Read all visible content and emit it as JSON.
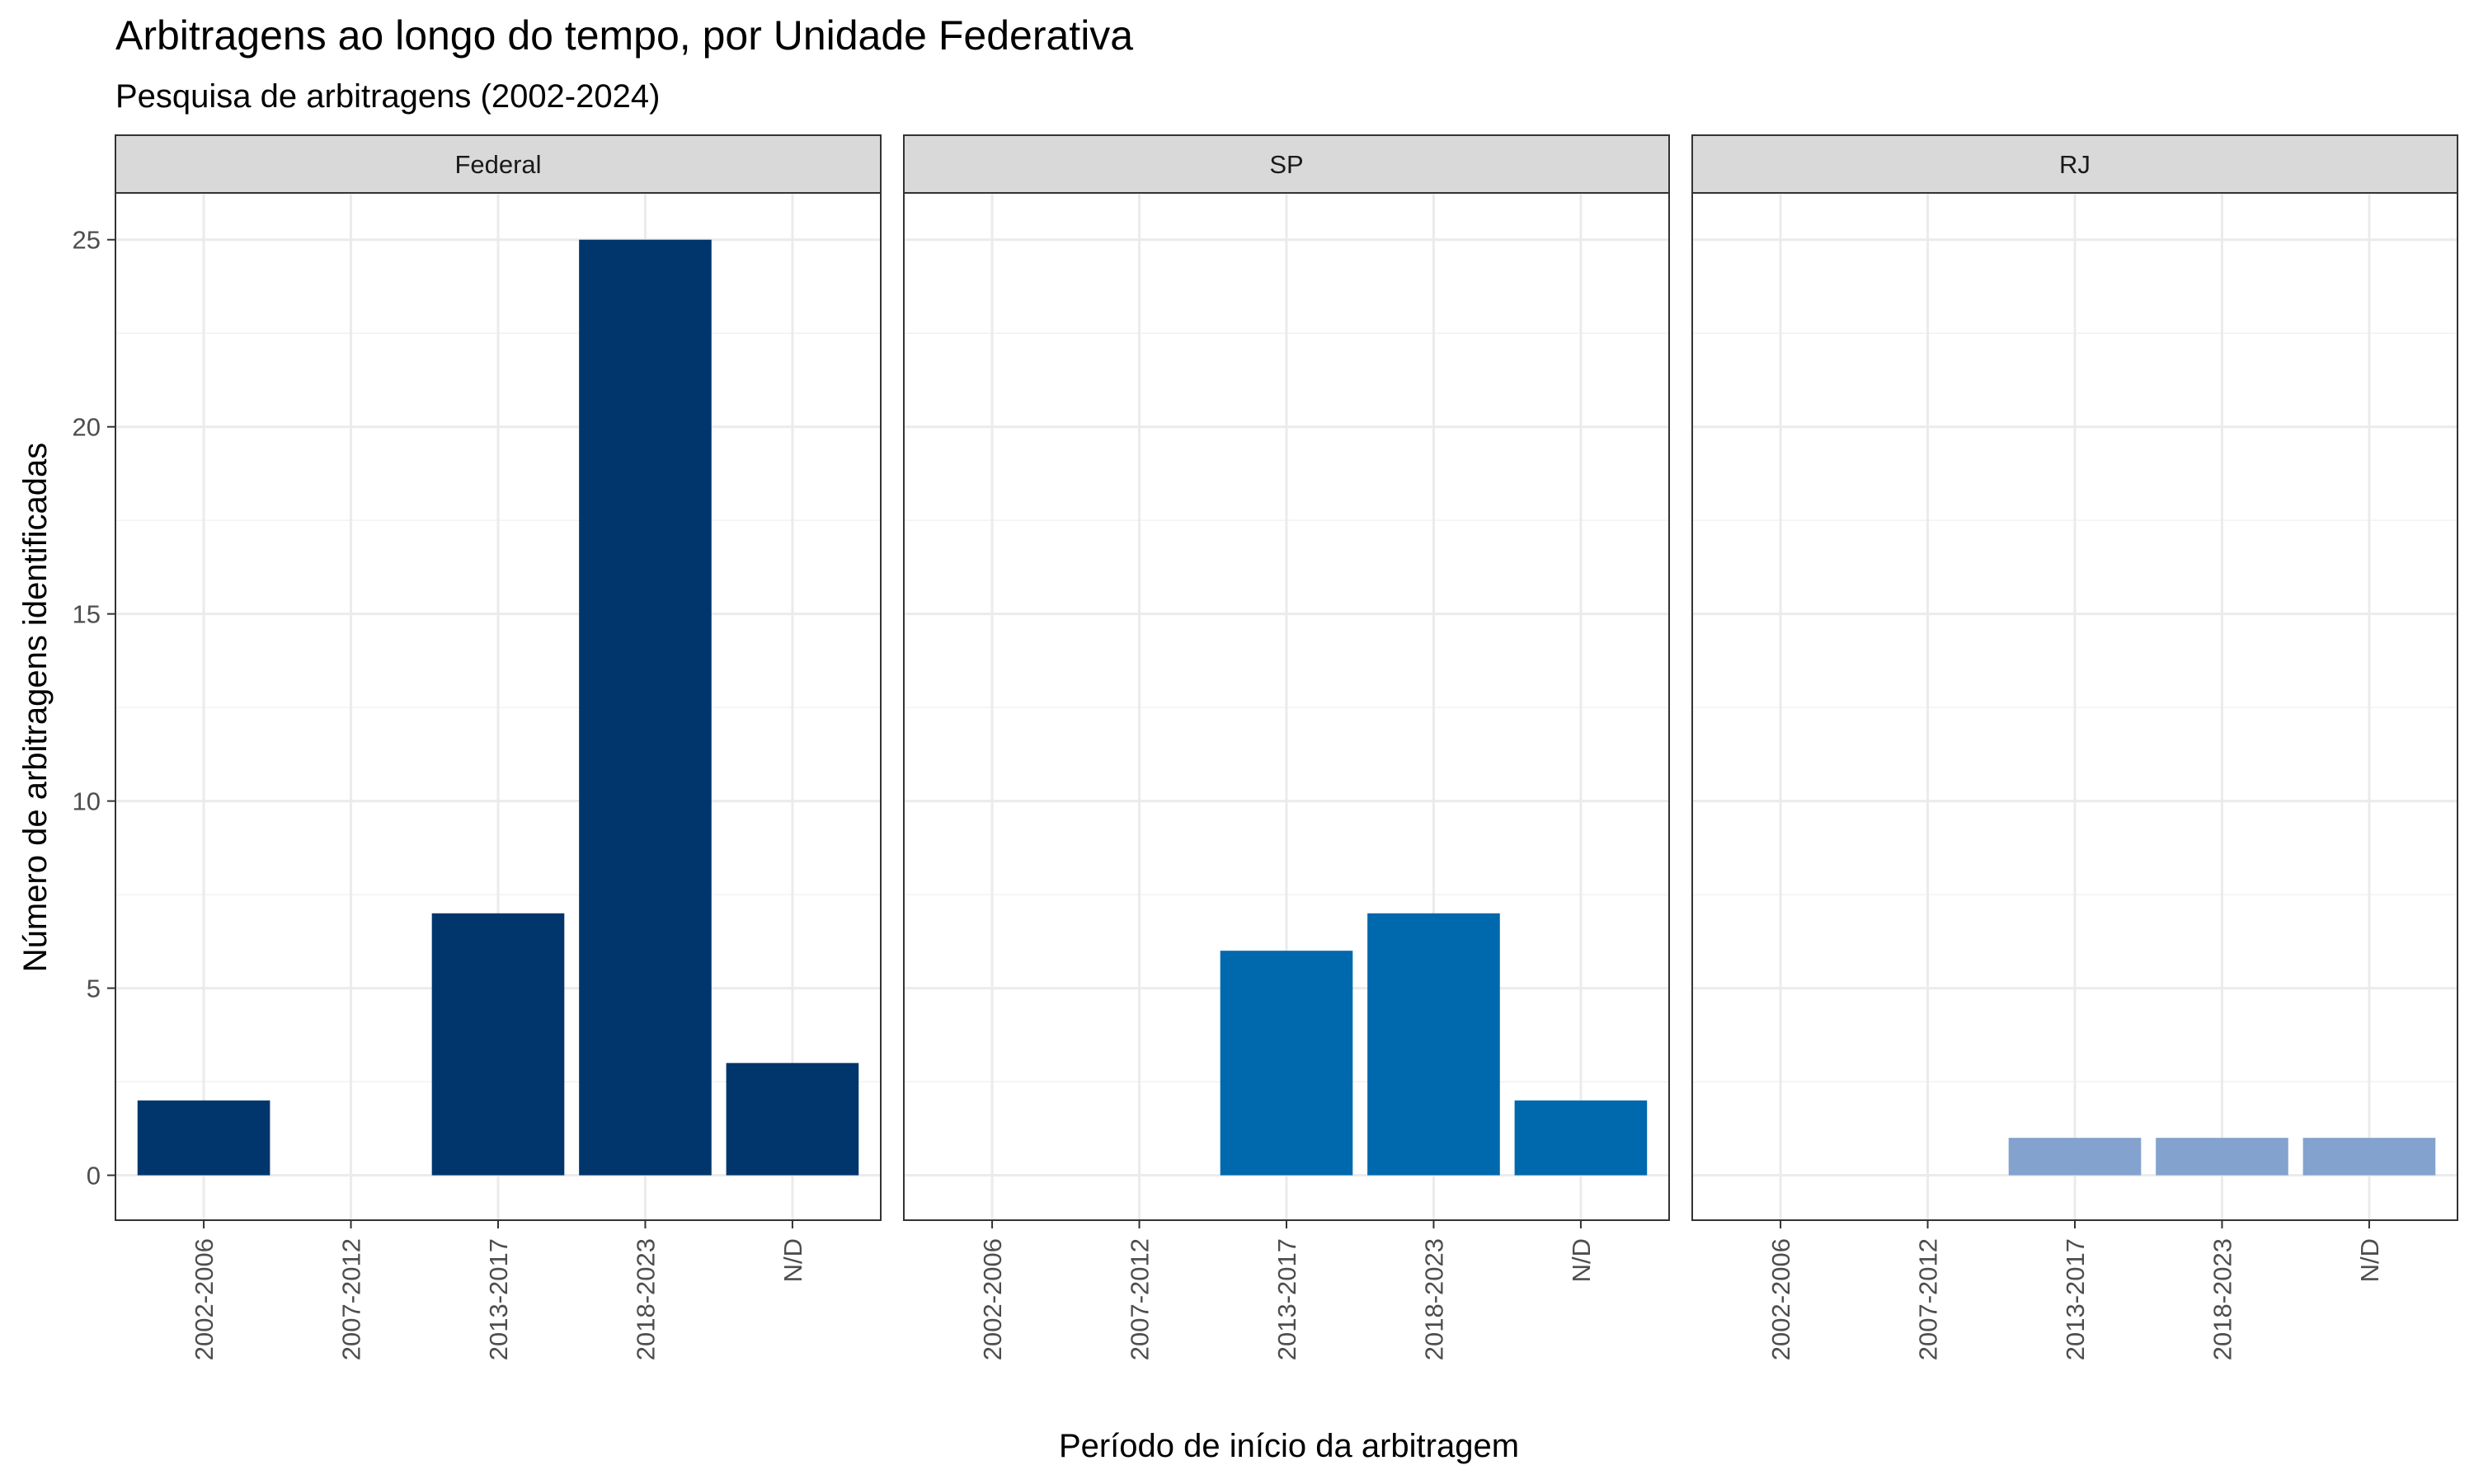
{
  "chart_data": {
    "type": "bar",
    "title": "Arbitragens ao longo do tempo, por Unidade Federativa",
    "subtitle": "Pesquisa de arbitragens (2002-2024)",
    "xlabel": "Período de início da arbitragem",
    "ylabel": "Número de arbitragens identificadas",
    "categories": [
      "2002-2006",
      "2007-2012",
      "2013-2017",
      "2018-2023",
      "N/D"
    ],
    "ylim": [
      -1.2,
      26.25
    ],
    "yticks": [
      "0",
      "5",
      "10",
      "15",
      "20",
      "25"
    ],
    "grid": true,
    "facets": [
      {
        "name": "Federal",
        "color": "#00366c",
        "values": [
          2,
          0,
          7,
          25,
          3
        ]
      },
      {
        "name": "SP",
        "color": "#0068ad",
        "values": [
          0,
          0,
          6,
          7,
          2
        ]
      },
      {
        "name": "RJ",
        "color": "#83a3ce",
        "values": [
          0,
          0,
          1,
          1,
          1
        ]
      }
    ]
  }
}
